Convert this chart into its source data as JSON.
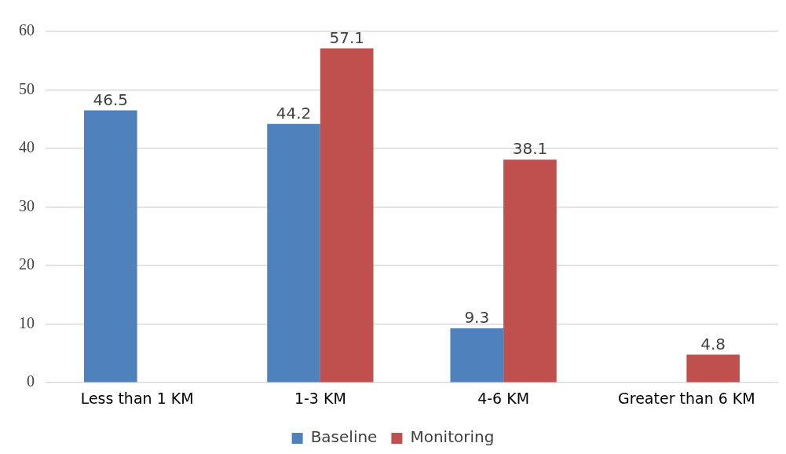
{
  "chart_data": {
    "type": "bar",
    "categories": [
      "Less than 1 KM",
      "1-3 KM",
      "4-6 KM",
      "Greater than 6 KM"
    ],
    "series": [
      {
        "name": "Baseline",
        "color": "#4f81bd",
        "values": [
          46.5,
          44.2,
          9.3,
          null
        ]
      },
      {
        "name": "Monitoring",
        "color": "#c0504d",
        "values": [
          null,
          57.1,
          38.1,
          4.8
        ]
      }
    ],
    "ylim": [
      0,
      60
    ],
    "yticks": [
      0,
      10,
      20,
      30,
      40,
      50,
      60
    ],
    "grid": "y",
    "legend": "bottom",
    "data_labels": true
  }
}
